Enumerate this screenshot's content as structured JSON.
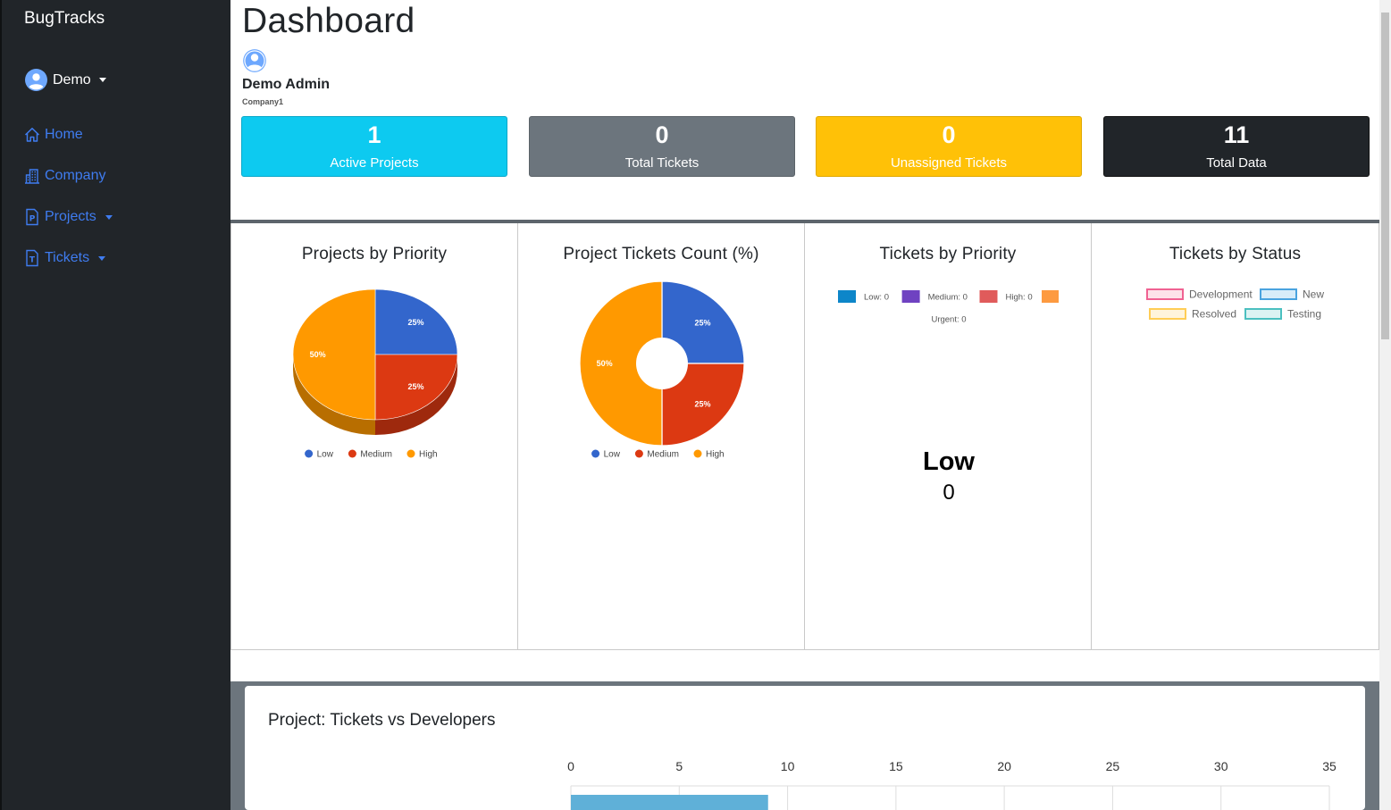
{
  "app": {
    "brand": "BugTracks"
  },
  "user_menu": {
    "name": "Demo"
  },
  "nav": [
    {
      "label": "Home",
      "icon": "home-icon"
    },
    {
      "label": "Company",
      "icon": "building-icon"
    },
    {
      "label": "Projects",
      "icon": "projects-file-icon"
    },
    {
      "label": "Tickets",
      "icon": "tickets-file-icon"
    }
  ],
  "header": {
    "title": "Dashboard",
    "profile_name": "Demo Admin",
    "profile_company": "Company1"
  },
  "stats": [
    {
      "value": "1",
      "label": "Active Projects",
      "color": "#0dcaf0"
    },
    {
      "value": "0",
      "label": "Total Tickets",
      "color": "#6c757d"
    },
    {
      "value": "0",
      "label": "Unassigned Tickets",
      "color": "#ffc107"
    },
    {
      "value": "11",
      "label": "Total Data",
      "color": "#212529"
    }
  ],
  "colors": {
    "accent_link": "#3f7cf0",
    "sidebar_bg": "#212529",
    "pie_low": "#3366cc",
    "pie_medium": "#dc3912",
    "pie_high": "#ff9900"
  },
  "chart_data": [
    {
      "type": "pie",
      "title": "Projects by Priority",
      "categories": [
        "Low",
        "Medium",
        "High"
      ],
      "values": [
        25,
        25,
        50
      ],
      "labels": [
        "25%",
        "25%",
        "50%"
      ],
      "colors": [
        "#3366cc",
        "#dc3912",
        "#ff9900"
      ],
      "legend": "bottom"
    },
    {
      "type": "pie",
      "title": "Project Tickets Count (%)",
      "categories": [
        "Low",
        "Medium",
        "High"
      ],
      "values": [
        25,
        25,
        50
      ],
      "labels": [
        "25%",
        "25%",
        "50%"
      ],
      "colors": [
        "#3366cc",
        "#dc3912",
        "#ff9900"
      ],
      "legend": "bottom"
    },
    {
      "type": "pie",
      "title": "Tickets by Priority",
      "legend_items": [
        "Low: 0",
        "Medium: 0",
        "High: 0",
        "Urgent: 0"
      ],
      "legend_colors": [
        "#0d86c9",
        "#6f42c1",
        "#e05b5b",
        "#fd9a40"
      ],
      "center_label": "Low",
      "center_value": "0",
      "legend": "top"
    },
    {
      "type": "pie",
      "title": "Tickets by Status",
      "legend_items": [
        "Development",
        "New",
        "Resolved",
        "Testing"
      ],
      "legend_fill": [
        "#fde2e9",
        "#d7ecf9",
        "#fff4dc",
        "#dcf3f3"
      ],
      "legend_stroke": [
        "#f06292",
        "#4aa3df",
        "#ffcd56",
        "#4bc0c0"
      ],
      "legend": "top"
    },
    {
      "type": "bar",
      "title": "Project: Tickets vs Developers",
      "xticks": [
        "0",
        "5",
        "10",
        "15",
        "20",
        "25",
        "30",
        "35"
      ],
      "xlim": [
        0,
        35
      ],
      "values": [
        9.1
      ],
      "bar_color": "#5fb0d8"
    }
  ]
}
